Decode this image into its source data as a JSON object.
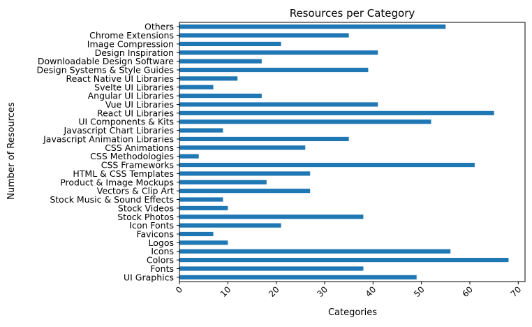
{
  "chart_data": {
    "type": "bar",
    "orientation": "horizontal",
    "title": "Resources per Category",
    "xlabel": "Categories",
    "ylabel": "Number of Resources",
    "xlim": [
      0,
      71.4
    ],
    "xticks": [
      0,
      10,
      20,
      30,
      40,
      50,
      60,
      70
    ],
    "grid": false,
    "bar_color": "#1f77b4",
    "categories": [
      "UI Graphics",
      "Fonts",
      "Colors",
      "Icons",
      "Logos",
      "Favicons",
      "Icon Fonts",
      "Stock Photos",
      "Stock Videos",
      "Stock Music & Sound Effects",
      "Vectors & Clip Art",
      "Product & Image Mockups",
      "HTML & CSS Templates",
      "CSS Frameworks",
      "CSS Methodologies",
      "CSS Animations",
      "Javascript Animation Libraries",
      "Javascript Chart Libraries",
      "UI Components & Kits",
      "React UI Libraries",
      "Vue UI Libraries",
      "Angular UI Libraries",
      "Svelte UI Libraries",
      "React Native UI Libraries",
      "Design Systems & Style Guides",
      "Downloadable Design Software",
      "Design Inspiration",
      "Image Compression",
      "Chrome Extensions",
      "Others"
    ],
    "values": [
      49,
      38,
      68,
      56,
      10,
      7,
      21,
      38,
      10,
      9,
      27,
      18,
      27,
      61,
      4,
      26,
      35,
      9,
      52,
      65,
      41,
      17,
      7,
      12,
      39,
      17,
      41,
      21,
      35,
      55
    ]
  }
}
